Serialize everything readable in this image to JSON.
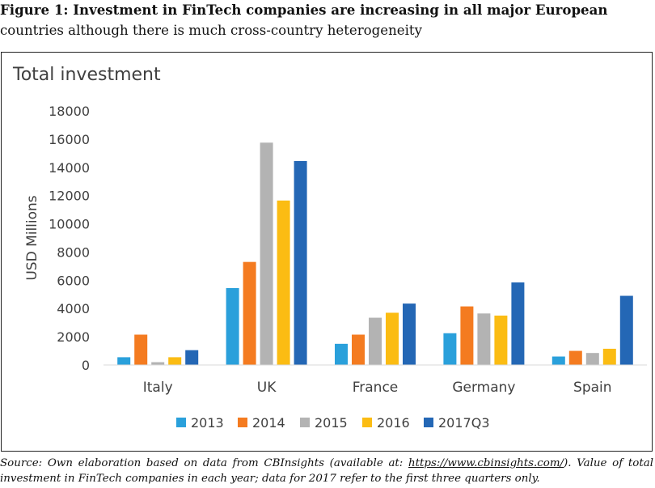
{
  "figure": {
    "title_line1": "Figure 1: Investment in FinTech companies are increasing in all major European",
    "title_line2": "countries although there is much cross-country heterogeneity"
  },
  "caption": {
    "prefix": "Source: Own elaboration based on data from CBInsights (available at: ",
    "link": "https://www.cbinsights.com/",
    "suffix": "). Value of total investment in FinTech companies in each year; data for 2017 refer to the first three quarters only."
  },
  "chart_data": {
    "type": "bar",
    "title": "Total investment",
    "xlabel": "",
    "ylabel": "USD Millions",
    "ylim": [
      0,
      18000
    ],
    "yticks": [
      0,
      2000,
      4000,
      6000,
      8000,
      10000,
      12000,
      14000,
      16000,
      18000
    ],
    "grid": false,
    "legend_position": "bottom",
    "categories": [
      "Italy",
      "UK",
      "France",
      "Germany",
      "Spain"
    ],
    "series": [
      {
        "name": "2013",
        "color": "#2aa0db",
        "values": [
          550,
          5450,
          1500,
          2250,
          600
        ]
      },
      {
        "name": "2014",
        "color": "#f47b20",
        "values": [
          2150,
          7300,
          2150,
          4150,
          1000
        ]
      },
      {
        "name": "2015",
        "color": "#b3b3b3",
        "values": [
          200,
          15750,
          3350,
          3650,
          850
        ]
      },
      {
        "name": "2016",
        "color": "#fbbc13",
        "values": [
          550,
          11650,
          3700,
          3500,
          1150
        ]
      },
      {
        "name": "2017Q3",
        "color": "#2467b5",
        "values": [
          1050,
          14450,
          4350,
          5850,
          4900
        ]
      }
    ]
  }
}
